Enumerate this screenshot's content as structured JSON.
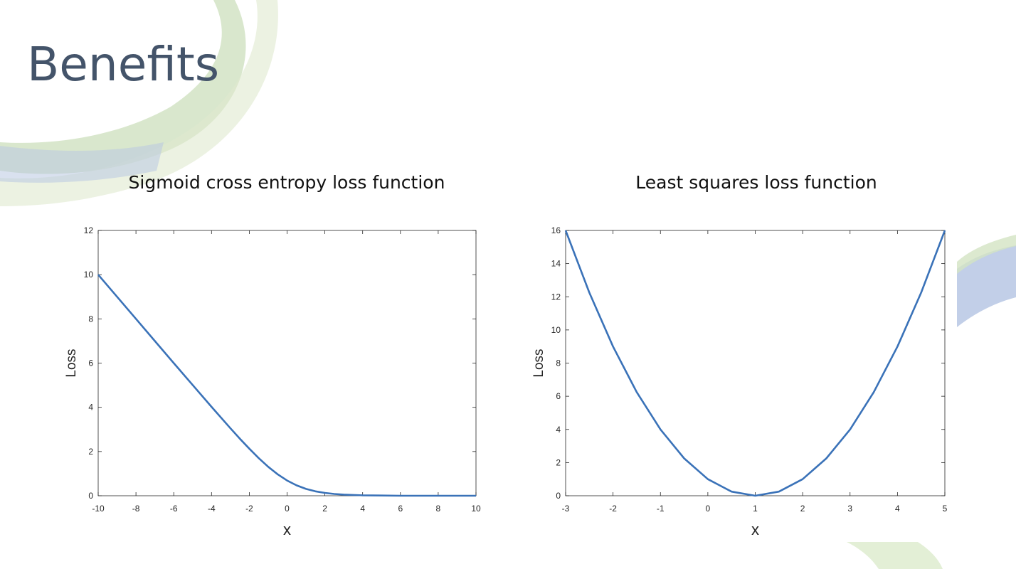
{
  "slide": {
    "title": "Benefits",
    "accent_colors": [
      "#b9d5a4",
      "#9fb4d6",
      "#d9e7cc"
    ]
  },
  "chart_data": [
    {
      "type": "line",
      "title": "Sigmoid cross entropy loss function",
      "xlabel": "x",
      "ylabel": "Loss",
      "xlim": [
        -10,
        10
      ],
      "ylim": [
        0,
        12
      ],
      "xticks": [
        -10,
        -8,
        -6,
        -4,
        -2,
        0,
        2,
        4,
        6,
        8,
        10
      ],
      "yticks": [
        0,
        2,
        4,
        6,
        8,
        10,
        12
      ],
      "grid": false,
      "series": [
        {
          "color": "#3a72b8",
          "x": [
            -10,
            -9,
            -8,
            -7,
            -6,
            -5,
            -4,
            -3,
            -2.5,
            -2,
            -1.5,
            -1,
            -0.5,
            0,
            0.5,
            1,
            1.5,
            2,
            2.5,
            3,
            4,
            5,
            6,
            7,
            8,
            9,
            10
          ],
          "y": [
            10.0,
            9.0,
            8.0,
            7.0,
            6.0,
            5.01,
            4.02,
            3.05,
            2.58,
            2.13,
            1.7,
            1.31,
            0.97,
            0.69,
            0.47,
            0.31,
            0.2,
            0.13,
            0.08,
            0.05,
            0.02,
            0.01,
            0.0,
            0.0,
            0.0,
            0.0,
            0.0
          ]
        }
      ]
    },
    {
      "type": "line",
      "title": "Least squares loss function",
      "xlabel": "x",
      "ylabel": "Loss",
      "xlim": [
        -3,
        5
      ],
      "ylim": [
        0,
        16
      ],
      "xticks": [
        -3,
        -2,
        -1,
        0,
        1,
        2,
        3,
        4,
        5
      ],
      "yticks": [
        0,
        2,
        4,
        6,
        8,
        10,
        12,
        14,
        16
      ],
      "grid": false,
      "series": [
        {
          "color": "#3a72b8",
          "x": [
            -3,
            -2.5,
            -2,
            -1.5,
            -1,
            -0.5,
            0,
            0.5,
            1,
            1.5,
            2,
            2.5,
            3,
            3.5,
            4,
            4.5,
            5
          ],
          "y": [
            16,
            12.25,
            9,
            6.25,
            4,
            2.25,
            1,
            0.25,
            0,
            0.25,
            1,
            2.25,
            4,
            6.25,
            9,
            12.25,
            16
          ]
        }
      ]
    }
  ]
}
